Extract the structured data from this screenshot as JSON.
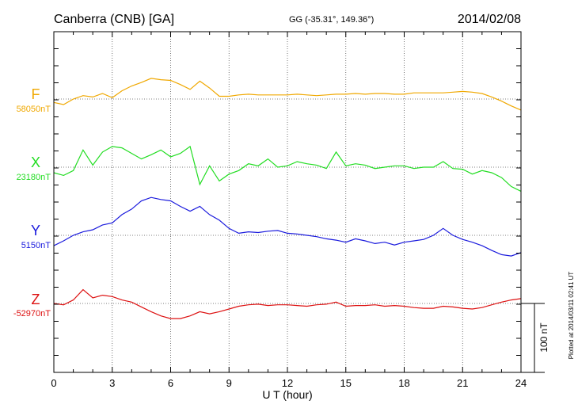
{
  "header": {
    "station": "Canberra (CNB)  [GA]",
    "coords": "GG (-35.31°, 149.36°)",
    "date": "2014/02/08"
  },
  "footer": {
    "plotted_note": "Plotted at 2014/03/11 02:41  UT"
  },
  "chart_data": {
    "type": "line",
    "xlabel": "U T (hour)",
    "ylabel": "",
    "xlim": [
      0,
      24
    ],
    "x_ticks": [
      "0",
      "3",
      "6",
      "9",
      "12",
      "15",
      "18",
      "21",
      "24"
    ],
    "grid": true,
    "scale_bar": {
      "label": "100 nT",
      "value": 100
    },
    "x": [
      0,
      0.5,
      1,
      1.5,
      2,
      2.5,
      3,
      3.5,
      4,
      4.5,
      5,
      5.5,
      6,
      6.5,
      7,
      7.5,
      8,
      8.5,
      9,
      9.5,
      10,
      10.5,
      11,
      11.5,
      12,
      12.5,
      13,
      13.5,
      14,
      14.5,
      15,
      15.5,
      16,
      16.5,
      17,
      17.5,
      18,
      18.5,
      19,
      19.5,
      20,
      20.5,
      21,
      21.5,
      22,
      22.5,
      23,
      23.5,
      24
    ],
    "series": [
      {
        "name": "F",
        "baseline_label": "58050nT",
        "color": "#f0a800",
        "values": [
          -5,
          -8,
          0,
          5,
          3,
          8,
          2,
          12,
          19,
          24,
          30,
          28,
          27,
          21,
          14,
          26,
          16,
          4,
          4,
          6,
          7,
          6,
          6,
          6,
          6,
          7,
          6,
          5,
          6,
          7,
          7,
          8,
          7,
          8,
          8,
          7,
          7,
          9,
          9,
          9,
          9,
          10,
          11,
          10,
          8,
          3,
          -3,
          -10,
          -16
        ]
      },
      {
        "name": "X",
        "baseline_label": "23180nT",
        "color": "#22dd22",
        "values": [
          -8,
          -12,
          -5,
          25,
          3,
          22,
          30,
          28,
          20,
          12,
          18,
          25,
          15,
          20,
          30,
          -25,
          2,
          -20,
          -10,
          -5,
          5,
          2,
          12,
          0,
          2,
          8,
          5,
          3,
          -2,
          22,
          2,
          5,
          3,
          -2,
          0,
          2,
          2,
          -2,
          0,
          0,
          8,
          -2,
          -3,
          -10,
          -5,
          -8,
          -15,
          -28,
          -35
        ]
      },
      {
        "name": "Y",
        "baseline_label": "5150nT",
        "color": "#1a1add",
        "values": [
          -15,
          -8,
          0,
          5,
          8,
          15,
          18,
          30,
          38,
          50,
          55,
          52,
          50,
          42,
          35,
          42,
          30,
          22,
          10,
          3,
          5,
          4,
          6,
          7,
          3,
          2,
          0,
          -2,
          -5,
          -7,
          -10,
          -5,
          -8,
          -12,
          -10,
          -14,
          -10,
          -8,
          -6,
          0,
          10,
          0,
          -6,
          -10,
          -15,
          -22,
          -28,
          -30,
          -25
        ]
      },
      {
        "name": "Z",
        "baseline_label": "-52970nT",
        "color": "#dd1111",
        "values": [
          0,
          -2,
          5,
          20,
          8,
          12,
          10,
          5,
          2,
          -5,
          -12,
          -18,
          -22,
          -22,
          -18,
          -12,
          -15,
          -12,
          -8,
          -4,
          -2,
          -1,
          -3,
          -2,
          -2,
          -3,
          -4,
          -2,
          -1,
          2,
          -4,
          -3,
          -3,
          -2,
          -4,
          -3,
          -4,
          -6,
          -7,
          -7,
          -4,
          -5,
          -7,
          -8,
          -6,
          -2,
          2,
          5,
          7
        ]
      }
    ]
  }
}
